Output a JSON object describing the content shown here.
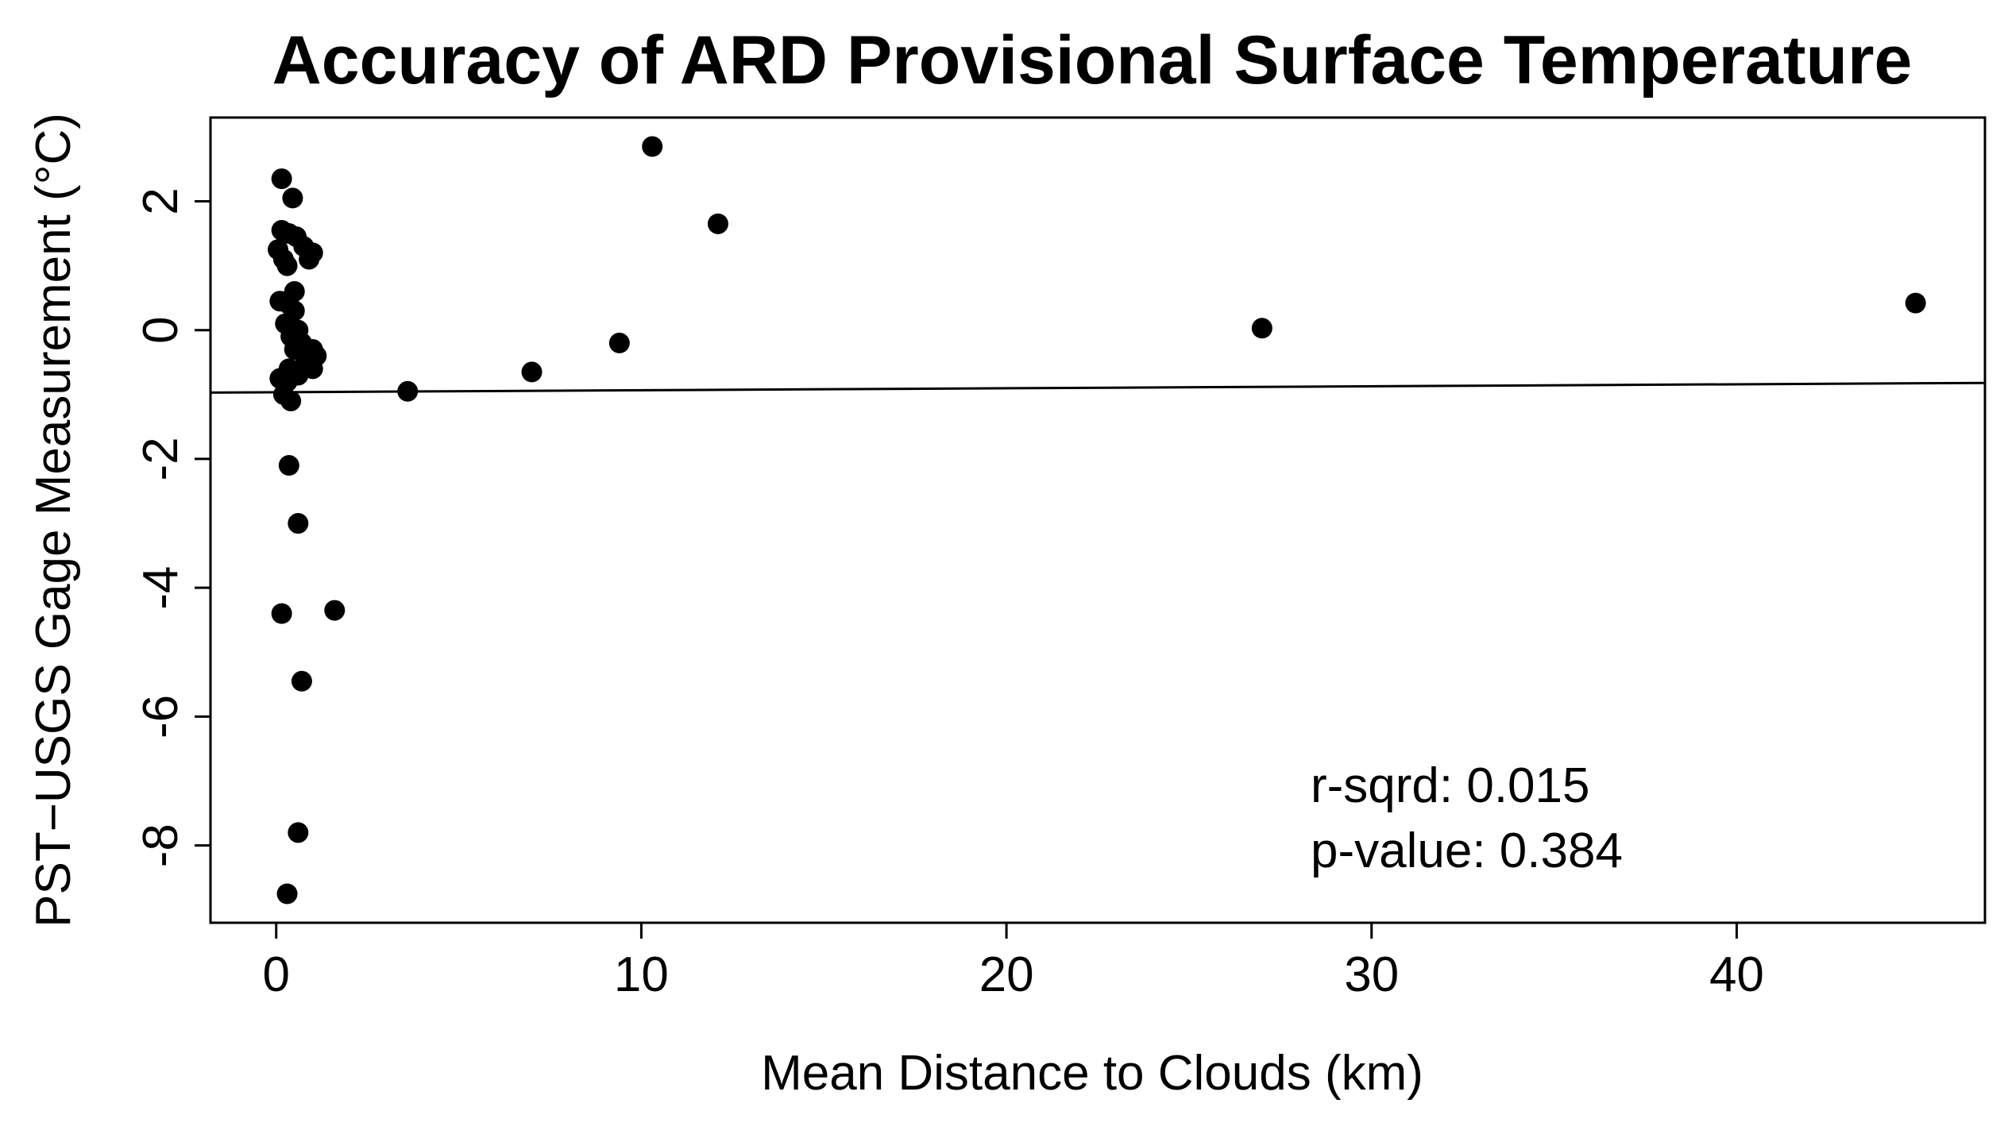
{
  "chart_data": {
    "type": "scatter",
    "title": "Accuracy of ARD Provisional Surface Temperature",
    "xlabel": "Mean Distance to Clouds (km)",
    "ylabel": "PST−USGS Gage Measurement (°C)",
    "xlim": [
      -1.8,
      46.8
    ],
    "ylim": [
      -9.2,
      3.3
    ],
    "x_ticks": [
      0,
      10,
      20,
      30,
      40
    ],
    "y_ticks": [
      2,
      0,
      -2,
      -4,
      -6,
      -8
    ],
    "grid": false,
    "legend": "none",
    "point_color": "#000000",
    "points": [
      {
        "x": 0.15,
        "y": 2.35
      },
      {
        "x": 0.45,
        "y": 2.05
      },
      {
        "x": 0.15,
        "y": 1.55
      },
      {
        "x": 0.35,
        "y": 1.5
      },
      {
        "x": 0.55,
        "y": 1.45
      },
      {
        "x": 0.75,
        "y": 1.3
      },
      {
        "x": 0.05,
        "y": 1.25
      },
      {
        "x": 1.0,
        "y": 1.2
      },
      {
        "x": 0.2,
        "y": 1.1
      },
      {
        "x": 0.9,
        "y": 1.1
      },
      {
        "x": 0.3,
        "y": 1.0
      },
      {
        "x": 0.5,
        "y": 0.6
      },
      {
        "x": 0.1,
        "y": 0.45
      },
      {
        "x": 0.35,
        "y": 0.4
      },
      {
        "x": 0.5,
        "y": 0.3
      },
      {
        "x": 0.25,
        "y": 0.1
      },
      {
        "x": 0.6,
        "y": 0.0
      },
      {
        "x": 0.4,
        "y": -0.1
      },
      {
        "x": 0.7,
        "y": -0.2
      },
      {
        "x": 1.0,
        "y": -0.3
      },
      {
        "x": 0.5,
        "y": -0.3
      },
      {
        "x": 1.1,
        "y": -0.4
      },
      {
        "x": 0.8,
        "y": -0.5
      },
      {
        "x": 0.35,
        "y": -0.6
      },
      {
        "x": 1.0,
        "y": -0.6
      },
      {
        "x": 0.6,
        "y": -0.7
      },
      {
        "x": 0.1,
        "y": -0.75
      },
      {
        "x": 0.3,
        "y": -0.8
      },
      {
        "x": 0.2,
        "y": -1.0
      },
      {
        "x": 0.4,
        "y": -1.1
      },
      {
        "x": 0.35,
        "y": -2.1
      },
      {
        "x": 0.6,
        "y": -3.0
      },
      {
        "x": 0.15,
        "y": -4.4
      },
      {
        "x": 1.6,
        "y": -4.35
      },
      {
        "x": 0.7,
        "y": -5.45
      },
      {
        "x": 0.6,
        "y": -7.8
      },
      {
        "x": 0.3,
        "y": -8.75
      },
      {
        "x": 3.6,
        "y": -0.95
      },
      {
        "x": 7.0,
        "y": -0.65
      },
      {
        "x": 9.4,
        "y": -0.2
      },
      {
        "x": 10.3,
        "y": 2.85
      },
      {
        "x": 12.1,
        "y": 1.65
      },
      {
        "x": 27.0,
        "y": 0.03
      },
      {
        "x": 44.9,
        "y": 0.42
      }
    ],
    "regression_line": {
      "x": [
        -1.8,
        46.8
      ],
      "y": [
        -0.97,
        -0.82
      ]
    },
    "annotations": [
      "r-sqrd: 0.015",
      "p-value: 0.384"
    ]
  }
}
